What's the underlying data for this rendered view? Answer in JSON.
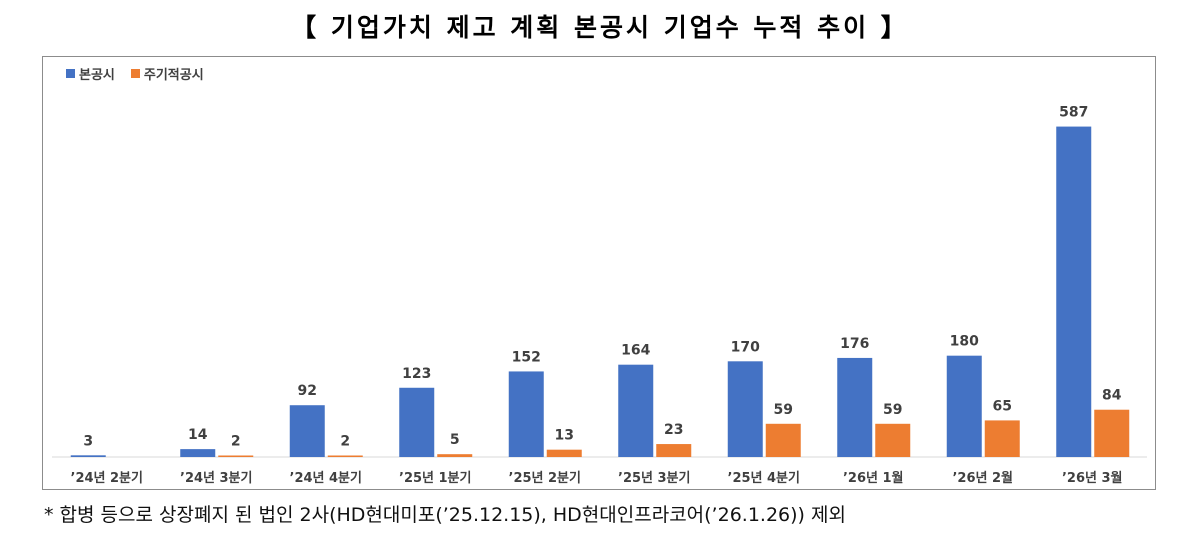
{
  "title": "【 기업가치 제고 계획 본공시 기업수 누적 추이 】",
  "footnote": "* 합병 등으로 상장폐지 된 법인 2사(HD현대미포(’25.12.15), HD현대인프라코어(’26.1.26)) 제외",
  "colors": {
    "main": "#4472C4",
    "periodic": "#ED7D31"
  },
  "chart_data": {
    "type": "bar",
    "title": "【 기업가치 제고 계획 본공시 기업수 누적 추이 】",
    "categories": [
      "’24년 2분기",
      "’24년 3분기",
      "’24년 4분기",
      "’25년 1분기",
      "’25년 2분기",
      "’25년 3분기",
      "’25년 4분기",
      "’26년 1월",
      "’26년 2월",
      "’26년 3월"
    ],
    "series": [
      {
        "name": "본공시",
        "color": "#4472C4",
        "values": [
          3,
          14,
          92,
          123,
          152,
          164,
          170,
          176,
          180,
          587
        ]
      },
      {
        "name": "주기적공시",
        "color": "#ED7D31",
        "values": [
          null,
          2,
          2,
          5,
          13,
          23,
          59,
          59,
          65,
          84
        ]
      }
    ],
    "ylim": [
      0,
      620
    ],
    "grid": false,
    "legend": "top-left",
    "data_labels": true
  }
}
